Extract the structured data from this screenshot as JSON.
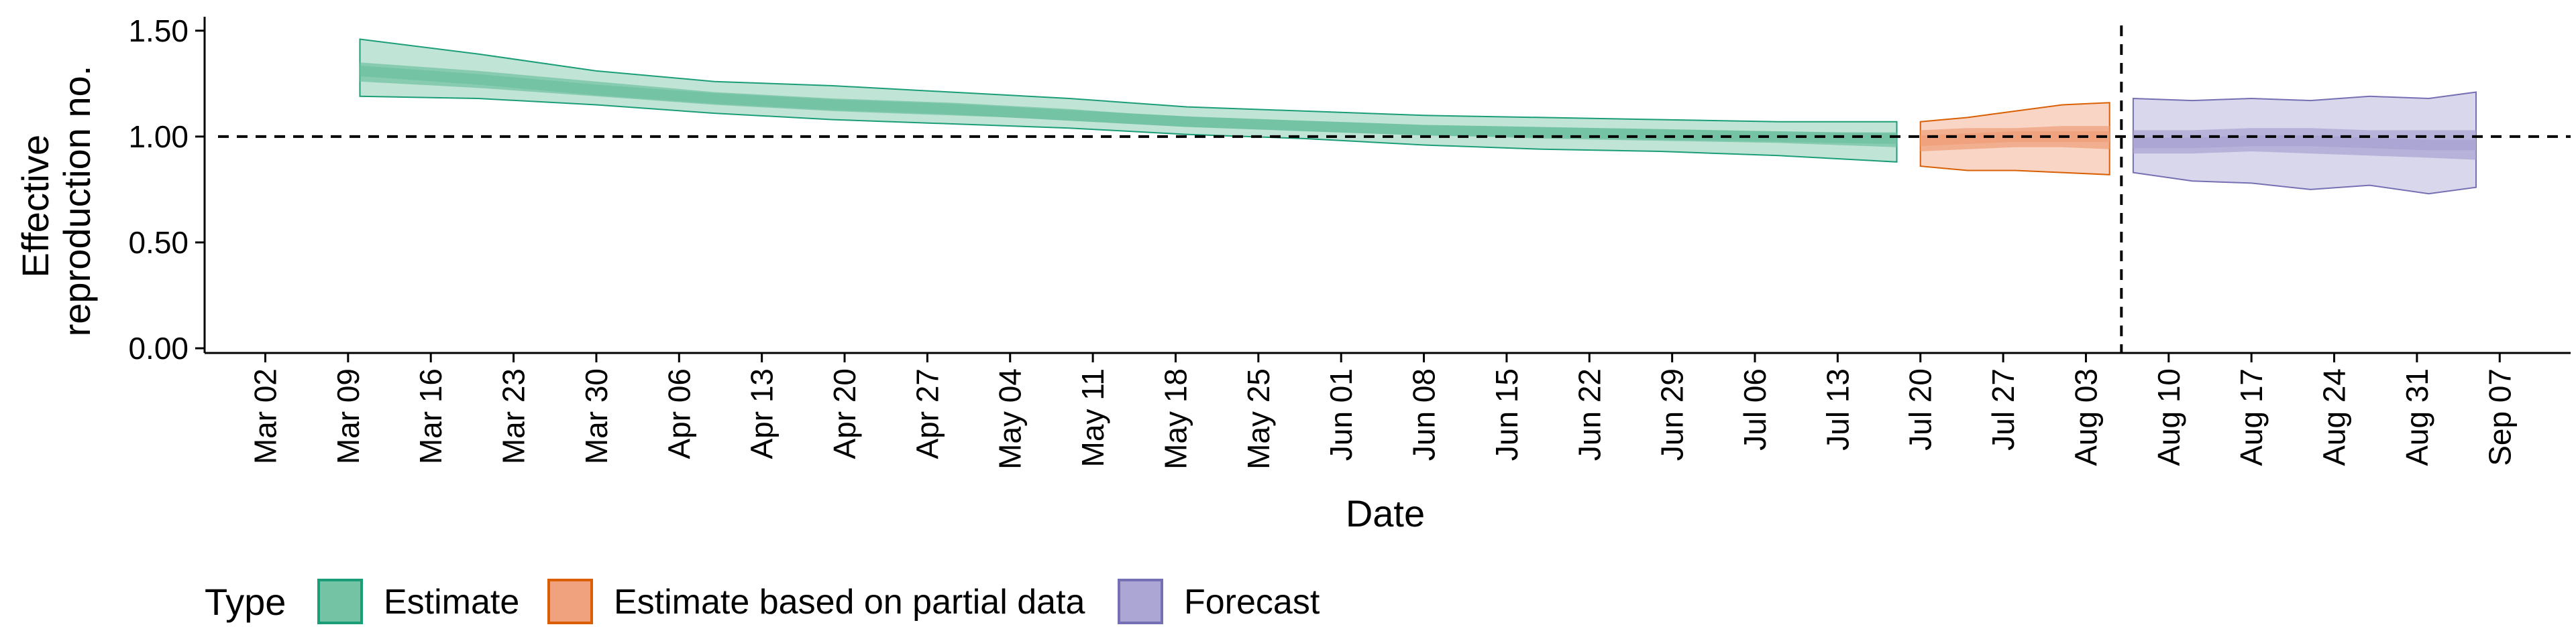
{
  "chart_data": {
    "type": "area",
    "title": "",
    "xlabel": "Date",
    "ylabel_lines": [
      "Effective",
      "reproduction no."
    ],
    "ylim": [
      0,
      1.55
    ],
    "yticks": [
      0,
      0.5,
      1.0,
      1.5
    ],
    "ytick_labels": [
      "0.00",
      "0.50",
      "1.00",
      "1.50"
    ],
    "x_tick_labels": [
      "Mar 02",
      "Mar 09",
      "Mar 16",
      "Mar 23",
      "Mar 30",
      "Apr 06",
      "Apr 13",
      "Apr 20",
      "Apr 27",
      "May 04",
      "May 11",
      "May 18",
      "May 25",
      "Jun 01",
      "Jun 08",
      "Jun 15",
      "Jun 22",
      "Jun 29",
      "Jul 06",
      "Jul 13",
      "Jul 20",
      "Jul 27",
      "Aug 03",
      "Aug 10",
      "Aug 17",
      "Aug 24",
      "Aug 31",
      "Sep 07"
    ],
    "reference_line_y": 1.0,
    "reference_line_date": "2020-08-06",
    "grid": false,
    "legend_title": "Type",
    "legend_position": "bottom",
    "series": [
      {
        "name": "Estimate",
        "color": "#1b9e77",
        "fill": "#74c3a4",
        "dates": [
          "2020-03-10",
          "2020-03-20",
          "2020-03-30",
          "2020-04-09",
          "2020-04-19",
          "2020-04-29",
          "2020-05-09",
          "2020-05-19",
          "2020-05-29",
          "2020-06-08",
          "2020-06-18",
          "2020-06-28",
          "2020-07-08",
          "2020-07-18"
        ],
        "median": [
          1.31,
          1.27,
          1.22,
          1.18,
          1.15,
          1.13,
          1.1,
          1.07,
          1.05,
          1.03,
          1.02,
          1.01,
          1.0,
          0.99
        ],
        "lower_50": [
          1.26,
          1.23,
          1.19,
          1.15,
          1.12,
          1.1,
          1.08,
          1.05,
          1.03,
          1.01,
          0.99,
          0.98,
          0.97,
          0.95
        ],
        "upper_50": [
          1.35,
          1.31,
          1.26,
          1.21,
          1.18,
          1.16,
          1.13,
          1.09,
          1.07,
          1.05,
          1.04,
          1.03,
          1.02,
          1.02
        ],
        "lower_90": [
          1.19,
          1.18,
          1.15,
          1.11,
          1.08,
          1.06,
          1.04,
          1.01,
          0.99,
          0.96,
          0.94,
          0.93,
          0.91,
          0.88
        ],
        "upper_90": [
          1.46,
          1.39,
          1.31,
          1.26,
          1.24,
          1.21,
          1.18,
          1.14,
          1.12,
          1.1,
          1.09,
          1.08,
          1.07,
          1.07
        ]
      },
      {
        "name": "Estimate based on partial data",
        "color": "#d95f02",
        "fill": "#f0a27e",
        "dates": [
          "2020-07-20",
          "2020-07-24",
          "2020-07-28",
          "2020-08-01",
          "2020-08-05"
        ],
        "median": [
          0.98,
          0.99,
          1.0,
          1.0,
          1.0
        ],
        "lower_50": [
          0.93,
          0.94,
          0.95,
          0.95,
          0.94
        ],
        "upper_50": [
          1.03,
          1.04,
          1.04,
          1.05,
          1.05
        ],
        "lower_90": [
          0.86,
          0.84,
          0.84,
          0.83,
          0.82
        ],
        "upper_90": [
          1.07,
          1.09,
          1.12,
          1.15,
          1.16
        ]
      },
      {
        "name": "Forecast",
        "color": "#7570b3",
        "fill": "#aba6d4",
        "dates": [
          "2020-08-07",
          "2020-08-12",
          "2020-08-17",
          "2020-08-22",
          "2020-08-27",
          "2020-09-01",
          "2020-09-05"
        ],
        "median": [
          0.97,
          0.97,
          0.98,
          0.98,
          0.97,
          0.96,
          0.96
        ],
        "lower_50": [
          0.92,
          0.92,
          0.93,
          0.92,
          0.91,
          0.9,
          0.89
        ],
        "upper_50": [
          1.03,
          1.03,
          1.04,
          1.04,
          1.03,
          1.03,
          1.03
        ],
        "lower_90": [
          0.83,
          0.79,
          0.78,
          0.75,
          0.77,
          0.73,
          0.76
        ],
        "upper_90": [
          1.18,
          1.17,
          1.18,
          1.17,
          1.19,
          1.18,
          1.21
        ]
      }
    ]
  }
}
